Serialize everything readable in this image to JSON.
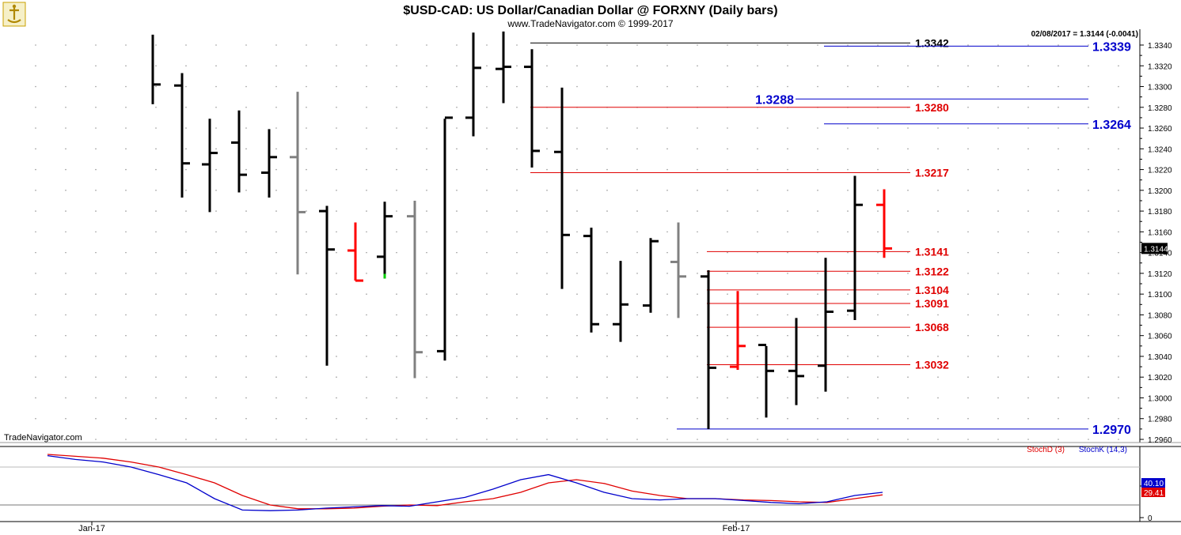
{
  "header": {
    "title": "$USD-CAD:  US Dollar/Canadian Dollar @ FORXNY  (Daily bars)",
    "subtitle": "www.TradeNavigator.com © 1999-2017",
    "last_info": "02/08/2017 = 1.3144 (-0.0041)",
    "watermark": "TradeNavigator.com"
  },
  "colors": {
    "bar_black": "#000000",
    "bar_gray": "#808080",
    "bar_red": "#ff0000",
    "green_tick": "#00cc00",
    "level_red": "#e00000",
    "level_blue": "#0000cc",
    "stoch_d": "#e00000",
    "stoch_k": "#0000cc"
  },
  "chart_data": {
    "type": "ohlc",
    "y_axis": {
      "min": 1.2955,
      "max": 1.3355,
      "ticks": [
        "1.3340",
        "1.3320",
        "1.3300",
        "1.3280",
        "1.3260",
        "1.3240",
        "1.3220",
        "1.3200",
        "1.3180",
        "1.3160",
        "1.3140",
        "1.3120",
        "1.3100",
        "1.3080",
        "1.3060",
        "1.3040",
        "1.3020",
        "1.3000",
        "1.2980",
        "1.2960"
      ],
      "current_label": "1.3144"
    },
    "x_labels": [
      {
        "label": "Jan-17",
        "bar_index": 2
      },
      {
        "label": "Feb-17",
        "bar_index": 24
      }
    ],
    "bars": [
      {
        "date": "12/28",
        "o": null,
        "h": 1.335,
        "l": 1.3283,
        "c": 1.3302,
        "color": "black"
      },
      {
        "date": "12/29",
        "o": 1.3301,
        "h": 1.3313,
        "l": 1.3193,
        "c": 1.3226,
        "color": "black"
      },
      {
        "date": "12/30",
        "o": 1.3225,
        "h": 1.3269,
        "l": 1.3179,
        "c": 1.3236,
        "color": "black"
      },
      {
        "date": "01/02",
        "o": 1.3246,
        "h": 1.3277,
        "l": 1.3198,
        "c": 1.3215,
        "color": "black"
      },
      {
        "date": "01/03",
        "o": 1.3217,
        "h": 1.3259,
        "l": 1.3193,
        "c": 1.3232,
        "color": "black"
      },
      {
        "date": "01/04",
        "o": 1.3232,
        "h": 1.3295,
        "l": 1.3119,
        "c": 1.3179,
        "color": "gray"
      },
      {
        "date": "01/05",
        "o": 1.318,
        "h": 1.3185,
        "l": 1.3031,
        "c": 1.3143,
        "color": "black"
      },
      {
        "date": "01/06",
        "o": 1.3142,
        "h": 1.3169,
        "l": 1.3113,
        "c": 1.3113,
        "color": "red"
      },
      {
        "date": "01/09",
        "o": 1.3136,
        "h": 1.3189,
        "l": 1.3115,
        "c": 1.3175,
        "color": "black",
        "green_low": true
      },
      {
        "date": "01/10",
        "o": 1.3175,
        "h": 1.319,
        "l": 1.3019,
        "c": 1.3044,
        "color": "gray"
      },
      {
        "date": "01/11",
        "o": 1.3045,
        "h": 1.3269,
        "l": 1.3036,
        "c": 1.327,
        "color": "black"
      },
      {
        "date": "01/12",
        "o": 1.327,
        "h": 1.3352,
        "l": 1.3252,
        "c": 1.3318,
        "color": "black"
      },
      {
        "date": "01/13",
        "o": 1.3317,
        "h": 1.3353,
        "l": 1.3284,
        "c": 1.3319,
        "color": "black"
      },
      {
        "date": "01/16",
        "o": 1.3319,
        "h": 1.3336,
        "l": 1.3222,
        "c": 1.3238,
        "color": "black"
      },
      {
        "date": "01/17",
        "o": 1.3237,
        "h": 1.3299,
        "l": 1.3105,
        "c": 1.3157,
        "color": "black"
      },
      {
        "date": "01/18",
        "o": 1.3156,
        "h": 1.3164,
        "l": 1.3063,
        "c": 1.3071,
        "color": "black"
      },
      {
        "date": "01/19",
        "o": 1.3071,
        "h": 1.3132,
        "l": 1.3054,
        "c": 1.309,
        "color": "black"
      },
      {
        "date": "01/20",
        "o": 1.3089,
        "h": 1.3154,
        "l": 1.3082,
        "c": 1.3151,
        "color": "black"
      },
      {
        "date": "01/23",
        "o": 1.3131,
        "h": 1.3169,
        "l": 1.3077,
        "c": 1.3117,
        "color": "gray"
      },
      {
        "date": "01/24",
        "o": 1.3117,
        "h": 1.3123,
        "l": 1.297,
        "c": 1.3029,
        "color": "black"
      },
      {
        "date": "01/25",
        "o": 1.303,
        "h": 1.3103,
        "l": 1.3027,
        "c": 1.305,
        "color": "red"
      },
      {
        "date": "01/26",
        "o": 1.3051,
        "h": 1.305,
        "l": 1.2981,
        "c": 1.3026,
        "color": "black"
      },
      {
        "date": "01/27",
        "o": 1.3026,
        "h": 1.3077,
        "l": 1.2993,
        "c": 1.3021,
        "color": "black"
      },
      {
        "date": "01/30",
        "o": 1.3031,
        "h": 1.3135,
        "l": 1.3006,
        "c": 1.3083,
        "color": "black"
      },
      {
        "date": "01/31",
        "o": 1.3084,
        "h": 1.3214,
        "l": 1.3075,
        "c": 1.3186,
        "color": "black"
      },
      {
        "date": "02/08",
        "o": 1.3186,
        "h": 1.3201,
        "l": 1.3135,
        "c": 1.3144,
        "color": "red"
      }
    ],
    "levels": [
      {
        "value": 1.3342,
        "label": "1.3342",
        "color": "black",
        "from_bar": 13,
        "side": "right-mid"
      },
      {
        "value": 1.3339,
        "label": "1.3339",
        "color": "blue",
        "from_bar": 23,
        "side": "right-end"
      },
      {
        "value": 1.3288,
        "label": "1.3288",
        "color": "blue",
        "from_bar": 23,
        "side": "left"
      },
      {
        "value": 1.328,
        "label": "1.3280",
        "color": "red",
        "from_bar": 13,
        "side": "right-mid"
      },
      {
        "value": 1.3264,
        "label": "1.3264",
        "color": "blue",
        "from_bar": 23,
        "side": "right-end"
      },
      {
        "value": 1.3217,
        "label": "1.3217",
        "color": "red",
        "from_bar": 13,
        "side": "right-mid"
      },
      {
        "value": 1.3141,
        "label": "1.3141",
        "color": "red",
        "from_bar": 19,
        "side": "right-mid"
      },
      {
        "value": 1.3122,
        "label": "1.3122",
        "color": "red",
        "from_bar": 19,
        "side": "right-mid"
      },
      {
        "value": 1.3104,
        "label": "1.3104",
        "color": "red",
        "from_bar": 19,
        "side": "right-mid"
      },
      {
        "value": 1.3091,
        "label": "1.3091",
        "color": "red",
        "from_bar": 19,
        "side": "right-mid"
      },
      {
        "value": 1.3068,
        "label": "1.3068",
        "color": "red",
        "from_bar": 19,
        "side": "right-mid"
      },
      {
        "value": 1.3032,
        "label": "1.3032",
        "color": "red",
        "from_bar": 19,
        "side": "right-mid"
      },
      {
        "value": 1.297,
        "label": "1.2970",
        "color": "blue",
        "from_bar": 18,
        "side": "right-end"
      }
    ],
    "stochastic": {
      "legend_d": "StochD (3)",
      "legend_k": "StochK (14,3)",
      "y_ticks": [
        "50",
        "0"
      ],
      "reference_level": 20,
      "value_k": "40.10",
      "value_d": "29.41",
      "k": [
        98,
        92,
        88,
        80,
        68,
        55,
        30,
        12,
        11,
        12,
        15,
        17,
        19,
        18,
        25,
        32,
        45,
        60,
        68,
        55,
        40,
        30,
        28,
        30,
        30,
        27,
        24,
        22,
        25,
        35,
        40
      ],
      "d": [
        100,
        97,
        94,
        88,
        80,
        68,
        55,
        35,
        20,
        14,
        14,
        15,
        18,
        20,
        19,
        25,
        30,
        40,
        55,
        60,
        54,
        42,
        35,
        30,
        30,
        28,
        27,
        25,
        24,
        30,
        36
      ]
    }
  }
}
